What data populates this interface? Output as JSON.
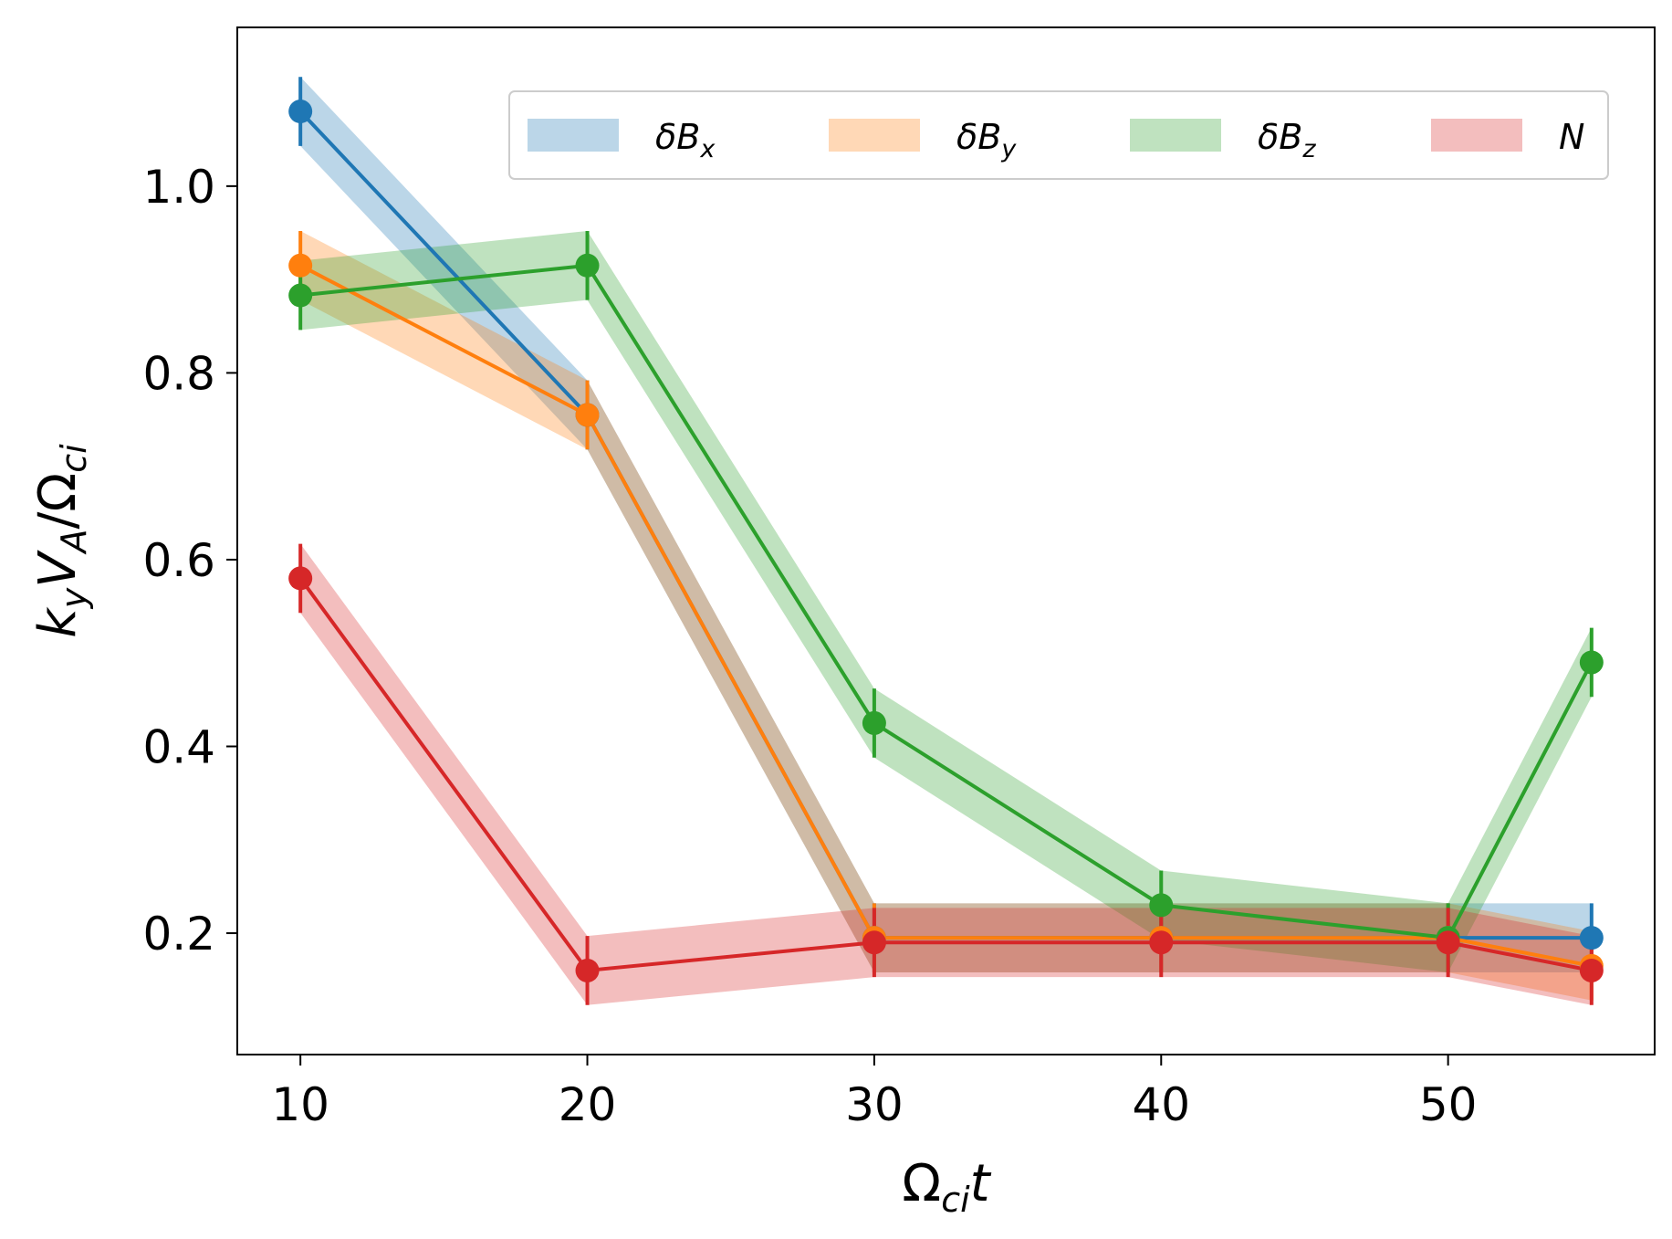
{
  "chart_data": {
    "type": "line",
    "title": "",
    "xlabel": "Ω_ci t",
    "ylabel": "k_y V_A/Ω_ci",
    "xlabel_parts": {
      "base": "Ω",
      "sub": "ci",
      "tail": "t"
    },
    "ylabel_parts": {
      "k": "k",
      "ksub": "y",
      "v": "V",
      "vsub": "A",
      "slash": "/Ω",
      "osub": "ci"
    },
    "xlim": [
      7.8,
      57.2
    ],
    "ylim": [
      0.07,
      1.17
    ],
    "xticks": [
      10,
      20,
      30,
      40,
      50
    ],
    "xtick_labels": [
      "10",
      "20",
      "30",
      "40",
      "50"
    ],
    "yticks": [
      0.2,
      0.4,
      0.6,
      0.8,
      1.0
    ],
    "ytick_labels": [
      "0.2",
      "0.4",
      "0.6",
      "0.8",
      "1.0"
    ],
    "x": [
      10,
      20,
      30,
      40,
      50,
      55
    ],
    "error": 0.037,
    "legend_placement": "top-right",
    "series": [
      {
        "name": "δB_x",
        "base": "δB",
        "sub": "x",
        "color": "#1f77b4",
        "values": [
          1.08,
          0.755,
          0.195,
          0.195,
          0.195,
          0.195
        ]
      },
      {
        "name": "δB_y",
        "base": "δB",
        "sub": "y",
        "color": "#ff7f0e",
        "values": [
          0.915,
          0.755,
          0.195,
          0.195,
          0.195,
          0.165
        ]
      },
      {
        "name": "δB_z",
        "base": "δB",
        "sub": "z",
        "color": "#2ca02c",
        "values": [
          0.883,
          0.915,
          0.425,
          0.23,
          0.195,
          0.49
        ]
      },
      {
        "name": "N",
        "base": "N",
        "sub": "",
        "color": "#d62728",
        "values": [
          0.58,
          0.16,
          0.19,
          0.19,
          0.19,
          0.16
        ]
      }
    ]
  }
}
